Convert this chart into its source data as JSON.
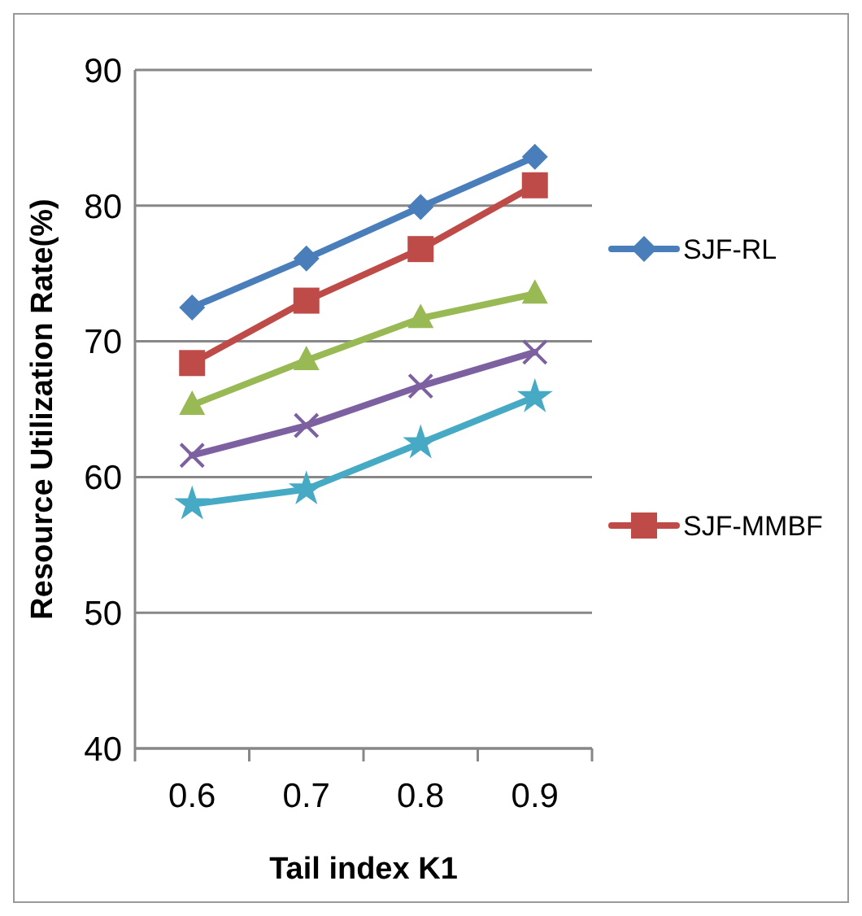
{
  "chart_data": {
    "type": "line",
    "xlabel": "Tail index K1",
    "ylabel": "Resource Utilization Rate(%)",
    "categories": [
      "0.6",
      "0.7",
      "0.8",
      "0.9"
    ],
    "ylim": [
      40,
      90
    ],
    "yticks": [
      40,
      50,
      60,
      70,
      80,
      90
    ],
    "grid": "y",
    "legend": "right",
    "series": [
      {
        "name": "SJF-RL",
        "color": "#4a7ebb",
        "marker": "diamond",
        "values": [
          72.5,
          76.1,
          79.9,
          83.6
        ]
      },
      {
        "name": "SJF-MMBF",
        "color": "#be4b48",
        "marker": "square",
        "values": [
          68.4,
          73.0,
          76.8,
          81.5
        ]
      },
      {
        "color": "#98b954",
        "marker": "triangle",
        "values": [
          65.3,
          68.6,
          71.7,
          73.5
        ]
      },
      {
        "color": "#7d60a0",
        "marker": "cross",
        "values": [
          61.6,
          63.8,
          66.7,
          69.2
        ]
      },
      {
        "color": "#46aac5",
        "marker": "star",
        "values": [
          58.0,
          59.1,
          62.5,
          65.9
        ]
      }
    ]
  }
}
